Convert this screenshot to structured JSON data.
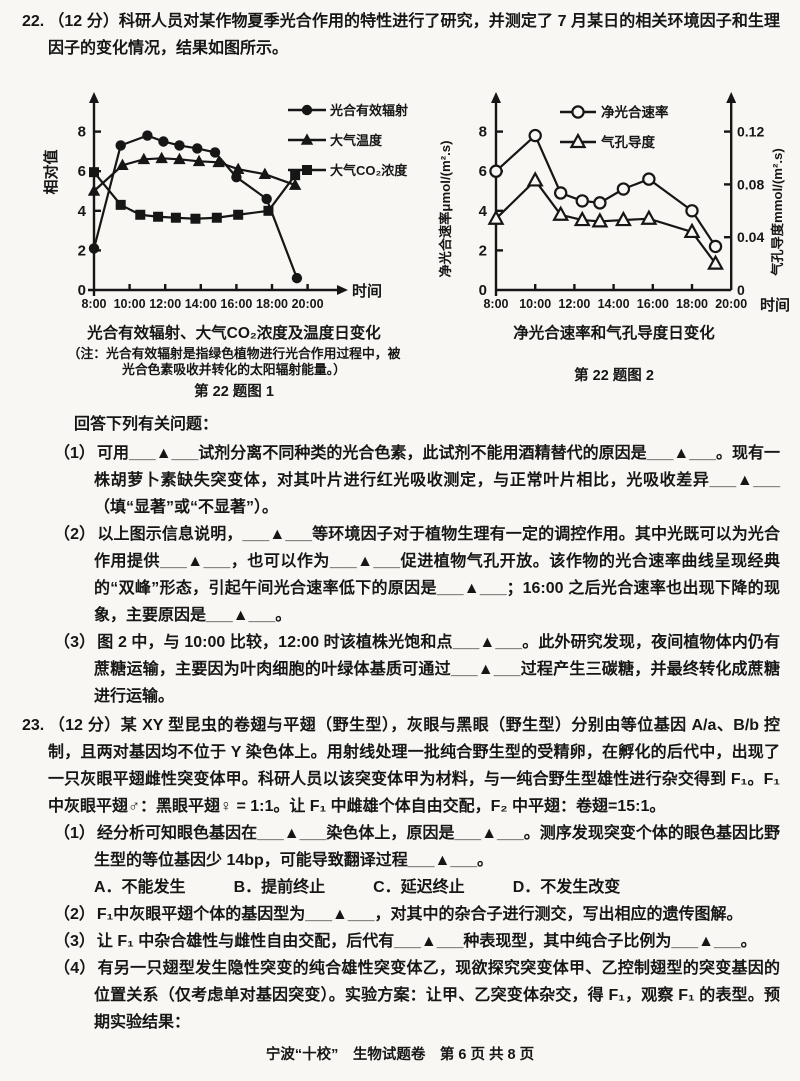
{
  "page": {
    "footer": "宁波“十校”　生物试题卷　第 6 页 共 8 页"
  },
  "q22": {
    "number": "22.",
    "intro": "（12 分）科研人员对某作物夏季光合作用的特性进行了研究，并测定了 7 月某日的相关环境因子和生理因子的变化情况，结果如图所示。",
    "answer_prompt": "回答下列有关问题：",
    "items": [
      {
        "num": "（1）",
        "text": "可用___▲___试剂分离不同种类的光合色素，此试剂不能用酒精替代的原因是___▲___。现有一株胡萝卜素缺失突变体，对其叶片进行红光吸收测定，与正常叶片相比，光吸收差异___▲___（填“显著”或“不显著”）。"
      },
      {
        "num": "（2）",
        "text": "以上图示信息说明，___▲___等环境因子对于植物生理有一定的调控作用。其中光既可以为光合作用提供___▲___，也可以作为___▲___促进植物气孔开放。该作物的光合速率曲线呈现经典的“双峰”形态，引起午间光合速率低下的原因是___▲___；16:00 之后光合速率也出现下降的现象，主要原因是___▲___。"
      },
      {
        "num": "（3）",
        "text": "图 2 中，与 10:00 比较，12:00 时该植株光饱和点___▲___。此外研究发现，夜间植物体内仍有蔗糖运输，主要因为叶肉细胞的叶绿体基质可通过___▲___过程产生三碳糖，并最终转化成蔗糖进行运输。"
      }
    ]
  },
  "q23": {
    "number": "23.",
    "intro": "（12 分）某 XY 型昆虫的卷翅与平翅（野生型），灰眼与黑眼（野生型）分别由等位基因 A/a、B/b 控制，且两对基因均不位于 Y 染色体上。用射线处理一批纯合野生型的受精卵，在孵化的后代中，出现了一只灰眼平翅雌性突变体甲。科研人员以该突变体甲为材料，与一纯合野生型雄性进行杂交得到 F₁。F₁ 中灰眼平翅♂：黑眼平翅♀ = 1:1。让 F₁ 中雌雄个体自由交配，F₂ 中平翅：卷翅=15:1。",
    "items": [
      {
        "num": "（1）",
        "text": "经分析可知眼色基因在___▲___染色体上，原因是___▲___。测序发现突变个体的眼色基因比野生型的等位基因少 14bp，可能导致翻译过程___▲___。"
      },
      {
        "num": "（2）",
        "text": "F₁中灰眼平翅个体的基因型为___▲___，对其中的杂合子进行测交，写出相应的遗传图解。"
      },
      {
        "num": "（3）",
        "text": "让 F₁ 中杂合雄性与雌性自由交配，后代有___▲___种表现型，其中纯合子比例为___▲___。"
      },
      {
        "num": "（4）",
        "text": "有另一只翅型发生隐性突变的纯合雄性突变体乙，现欲探究突变体甲、乙控制翅型的突变基因的位置关系（仅考虑单对基因突变）。实验方案：让甲、乙突变体杂交，得 F₁，观察 F₁ 的表型。预期实验结果："
      }
    ],
    "options": [
      "A．不能发生",
      "B．提前终止",
      "C．延迟终止",
      "D．不发生改变"
    ]
  },
  "chart_data": [
    {
      "type": "line",
      "title": "光合有效辐射、大气CO₂浓度及温度日变化",
      "note": "（注：光合有效辐射是指绿色植物进行光合作用过程中，被光合色素吸收并转化的太阳辐射能量。）",
      "figure_label": "第 22 题图 1",
      "xlabel": "时间",
      "ylabel": "相对值",
      "ylim": [
        0,
        9
      ],
      "yticks": [
        0,
        2,
        4,
        6,
        8
      ],
      "xtick_labels": [
        "8:00",
        "10:00",
        "12:00",
        "14:00",
        "16:00",
        "18:00",
        "20:00"
      ],
      "xtick_hours": [
        8,
        10,
        12,
        14,
        16,
        18,
        20
      ],
      "grid": false,
      "legend_position": "top-right",
      "series": [
        {
          "name": "光合有效辐射",
          "marker": "circle",
          "x_hours": [
            8,
            9.5,
            11,
            11.9,
            12.8,
            13.8,
            14.8,
            16,
            17.7,
            19.4
          ],
          "y": [
            2.1,
            7.3,
            7.8,
            7.5,
            7.3,
            7.15,
            6.95,
            5.7,
            4.6,
            0.6
          ]
        },
        {
          "name": "大气温度",
          "marker": "triangle",
          "x_hours": [
            8,
            9.6,
            10.8,
            11.8,
            12.8,
            13.9,
            15,
            16.1,
            17.6,
            19.3
          ],
          "y": [
            5.0,
            6.3,
            6.6,
            6.65,
            6.6,
            6.5,
            6.45,
            6.1,
            5.85,
            5.3
          ]
        },
        {
          "name": "大气CO₂浓度",
          "marker": "square",
          "x_hours": [
            8,
            9.5,
            10.6,
            11.6,
            12.6,
            13.7,
            14.9,
            16.1,
            17.8,
            19.3
          ],
          "y": [
            5.95,
            4.3,
            3.8,
            3.7,
            3.65,
            3.6,
            3.65,
            3.8,
            4.0,
            5.8
          ]
        }
      ]
    },
    {
      "type": "line",
      "title": "净光合速率和气孔导度日变化",
      "figure_label": "第 22 题图 2",
      "xlabel": "时间",
      "ylabel_left": "净光合速率μmol/(m².s)",
      "ylabel_right": "气孔导度mmol/(m².s)",
      "ylim_left": [
        0,
        9
      ],
      "yticks_left": [
        0,
        2,
        4,
        6,
        8
      ],
      "ylim_right": [
        0,
        0.135
      ],
      "yticks_right": [
        "0",
        "0.04",
        "0.08",
        "0.12"
      ],
      "xtick_labels": [
        "8:00",
        "10:00",
        "12:00",
        "14:00",
        "16:00",
        "18:00",
        "20:00"
      ],
      "xtick_hours": [
        8,
        10,
        12,
        14,
        16,
        18,
        20
      ],
      "grid": false,
      "legend_position": "top-center",
      "series": [
        {
          "name": "净光合速率",
          "axis": "left",
          "marker": "circle-open",
          "x_hours": [
            8,
            10,
            11.3,
            12.4,
            13.3,
            14.5,
            15.8,
            18,
            19.2
          ],
          "y": [
            6.0,
            7.8,
            4.9,
            4.5,
            4.4,
            5.1,
            5.6,
            4.0,
            2.2
          ]
        },
        {
          "name": "气孔导度",
          "axis": "right",
          "marker": "triangle-open",
          "x_hours": [
            8,
            10,
            11.3,
            12.4,
            13.3,
            14.5,
            15.8,
            18,
            19.2
          ],
          "y": [
            0.054,
            0.083,
            0.057,
            0.053,
            0.052,
            0.053,
            0.054,
            0.044,
            0.02
          ]
        }
      ]
    }
  ]
}
